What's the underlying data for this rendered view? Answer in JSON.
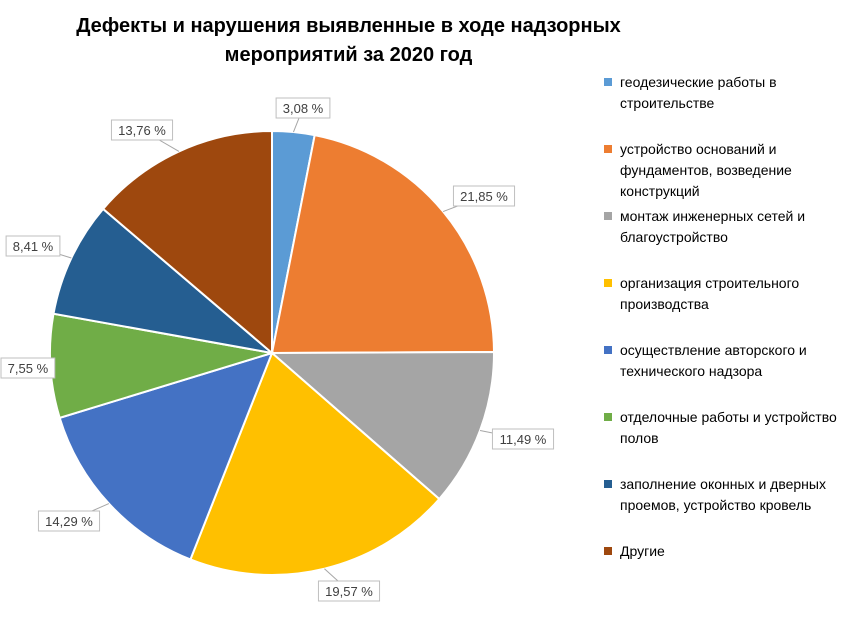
{
  "chart_data": {
    "type": "pie",
    "title_lines": [
      "Дефекты и нарушения выявленные в ходе надзорных",
      "мероприятий за 2020 год"
    ],
    "slices": [
      {
        "label": "геодезические работы в строительстве",
        "value": 3.08,
        "value_label": "3,08 %",
        "color": "#5B9BD5"
      },
      {
        "label": "устройство оснований и фундаментов, возведение конструкций",
        "value": 21.85,
        "value_label": "21,85 %",
        "color": "#ED7D31"
      },
      {
        "label": "монтаж инженерных сетей и благоустройство",
        "value": 11.49,
        "value_label": "11,49 %",
        "color": "#A5A5A5"
      },
      {
        "label": "организация строительного производства",
        "value": 19.57,
        "value_label": "19,57 %",
        "color": "#FFC000"
      },
      {
        "label": "осуществление авторского и технического надзора",
        "value": 14.29,
        "value_label": "14,29 %",
        "color": "#4472C4"
      },
      {
        "label": "отделочные работы и устройство полов",
        "value": 7.55,
        "value_label": "7,55 %",
        "color": "#70AD47"
      },
      {
        "label": "заполнение оконных и дверных проемов, устройство кровель",
        "value": 8.41,
        "value_label": "8,41 %",
        "color": "#255E91"
      },
      {
        "label": "Другие",
        "value": 13.76,
        "value_label": "13,76 %",
        "color": "#9E480E"
      }
    ],
    "legend_placement": "right"
  }
}
